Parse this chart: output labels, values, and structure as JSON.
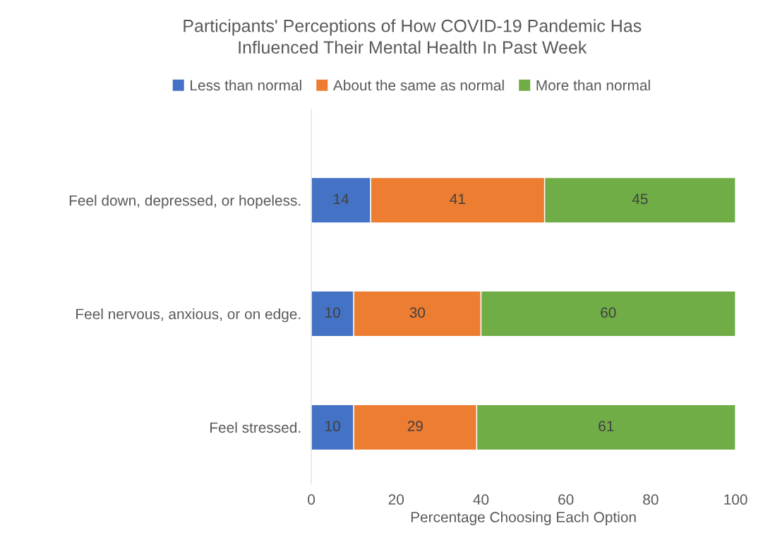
{
  "chart_data": {
    "type": "bar",
    "orientation": "horizontal",
    "stacked": true,
    "title": "Participants' Perceptions of How COVID-19 Pandemic Has\nInfluenced Their Mental Health In Past Week",
    "xlabel": "Percentage Choosing Each Option",
    "categories": [
      "Feel down, depressed, or hopeless.",
      "Feel nervous, anxious, or on edge.",
      "Feel stressed."
    ],
    "series": [
      {
        "name": "Less than normal",
        "color": "#4472c4",
        "values": [
          14,
          10,
          10
        ]
      },
      {
        "name": "About the same as normal",
        "color": "#ed7d31",
        "values": [
          41,
          30,
          29
        ]
      },
      {
        "name": "More than normal",
        "color": "#70ad47",
        "values": [
          45,
          60,
          61
        ]
      }
    ],
    "xlim": [
      0,
      100
    ],
    "xticks": [
      0,
      20,
      40,
      60,
      80,
      100
    ],
    "data_labels": true,
    "legend": "top",
    "grid": false
  }
}
